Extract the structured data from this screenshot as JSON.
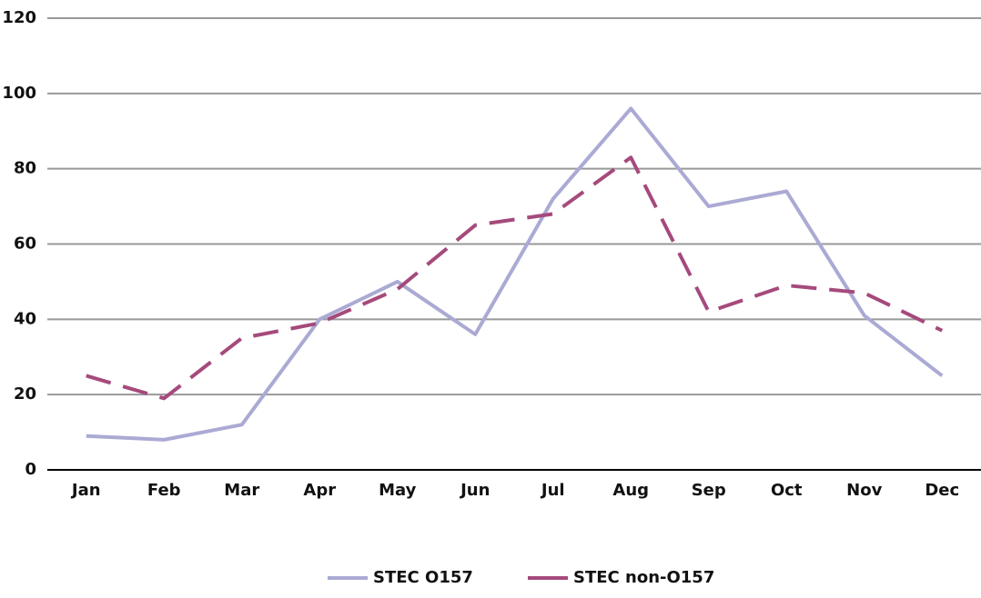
{
  "chart_data": {
    "type": "line",
    "categories": [
      "Jan",
      "Feb",
      "Mar",
      "Apr",
      "May",
      "Jun",
      "Jul",
      "Aug",
      "Sep",
      "Oct",
      "Nov",
      "Dec"
    ],
    "series": [
      {
        "name": "STEC O157",
        "color": "#aaaad4",
        "dashed": false,
        "values": [
          9,
          8,
          12,
          40,
          50,
          36,
          72,
          96,
          70,
          74,
          41,
          25
        ]
      },
      {
        "name": "STEC non-O157",
        "color": "#a54a7c",
        "dashed": true,
        "values": [
          25,
          19,
          35,
          39,
          48,
          65,
          68,
          83,
          42,
          49,
          47,
          37
        ]
      }
    ],
    "ylim": [
      0,
      120
    ],
    "yticks": [
      0,
      20,
      40,
      60,
      80,
      100,
      120
    ],
    "grid": true,
    "legend": "bottom"
  }
}
